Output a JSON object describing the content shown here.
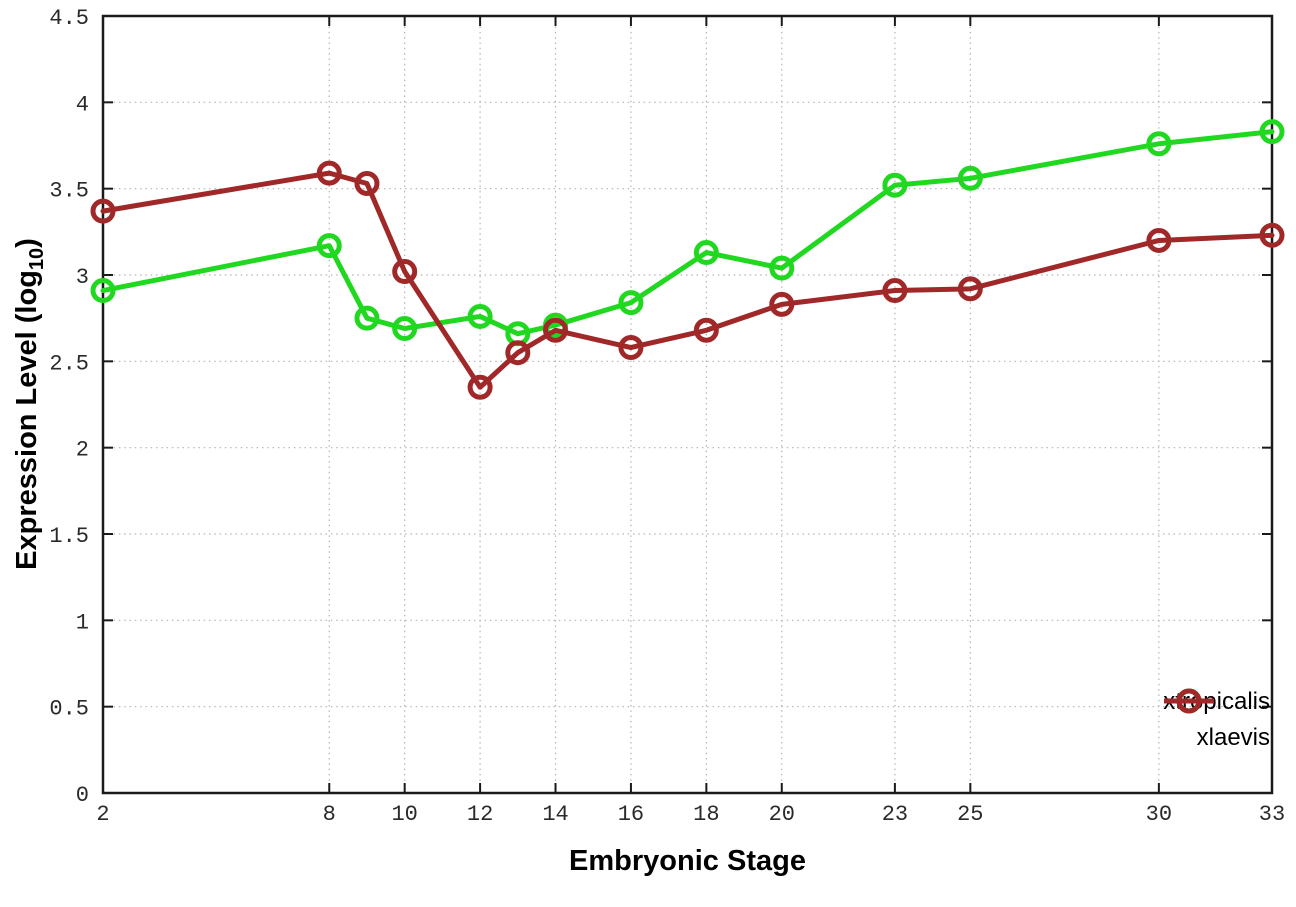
{
  "chart_data": {
    "type": "line",
    "title": "",
    "xlabel": "Embryonic Stage",
    "ylabel": "Expression Level (log10)",
    "ylabel_parts": {
      "base": "Expression Level (log",
      "sub": "10",
      "close": ")"
    },
    "x": [
      2,
      8,
      9,
      10,
      12,
      13,
      14,
      16,
      18,
      20,
      23,
      25,
      30,
      33
    ],
    "xticks": [
      2,
      8,
      10,
      12,
      14,
      16,
      18,
      20,
      23,
      25,
      30,
      33
    ],
    "yticks": [
      0,
      0.5,
      1,
      1.5,
      2,
      2.5,
      3,
      3.5,
      4,
      4.5
    ],
    "xlim": [
      2,
      33
    ],
    "ylim": [
      0,
      4.5
    ],
    "grid": true,
    "grid_style": "dotted",
    "legend_position": "inside-bottom-right",
    "marker": "open-circle",
    "series": [
      {
        "name": "xtropicalis",
        "color": "#21d821",
        "values": [
          2.91,
          3.17,
          2.75,
          2.69,
          2.76,
          2.66,
          2.71,
          2.84,
          3.13,
          3.04,
          3.52,
          3.56,
          3.76,
          3.83
        ]
      },
      {
        "name": "xlaevis",
        "color": "#a02828",
        "values": [
          3.37,
          3.59,
          3.53,
          3.02,
          2.35,
          2.55,
          2.68,
          2.58,
          2.68,
          2.83,
          2.91,
          2.92,
          3.2,
          3.23
        ]
      }
    ]
  }
}
